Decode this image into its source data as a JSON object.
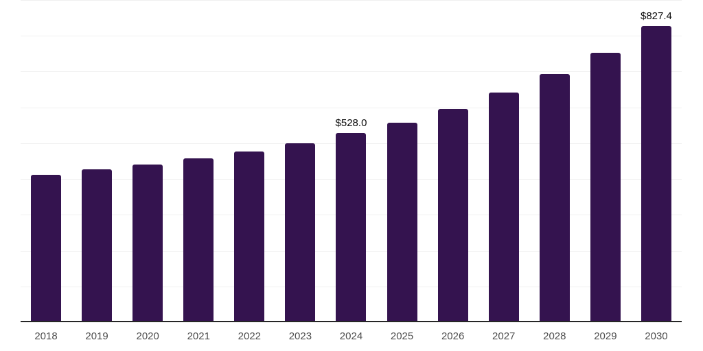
{
  "chart_data": {
    "type": "bar",
    "title": "",
    "xlabel": "",
    "ylabel": "",
    "categories": [
      "2018",
      "2019",
      "2020",
      "2021",
      "2022",
      "2023",
      "2024",
      "2025",
      "2026",
      "2027",
      "2028",
      "2029",
      "2030"
    ],
    "values": [
      412,
      427,
      440,
      458,
      477,
      499,
      528.0,
      558,
      596,
      641,
      693,
      752,
      827.4
    ],
    "data_labels": [
      "",
      "",
      "",
      "",
      "",
      "",
      "$528.0",
      "",
      "",
      "",
      "",
      "",
      "$827.4"
    ],
    "ylim": [
      0,
      900
    ],
    "gridline_step": 100,
    "grid": "horizontal",
    "y_tick_labels": "none",
    "legend": "none",
    "colors": {
      "bar": "#34134F",
      "gridline": "#F0F0F0",
      "axis_line": "#262626",
      "tick_label": "#4D4D4D",
      "data_label": "#0A0A0A",
      "background": "#FFFFFF"
    }
  }
}
